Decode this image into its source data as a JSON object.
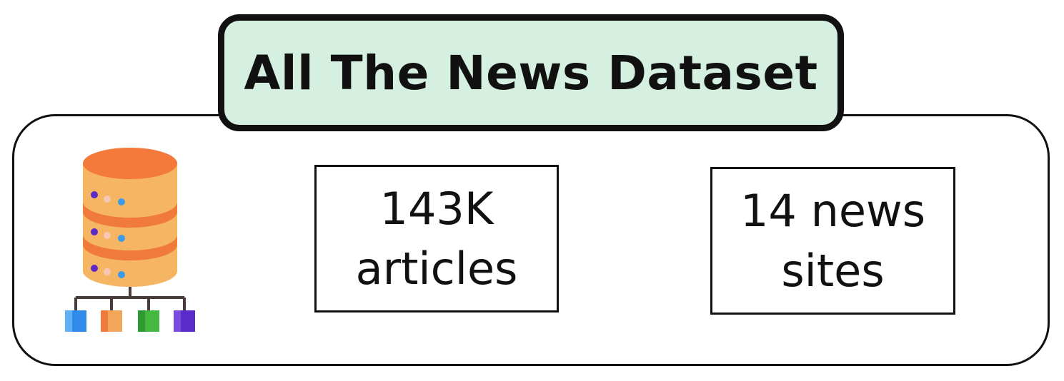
{
  "title": "All The News Dataset",
  "stats": [
    {
      "line1": "143K",
      "line2": "articles"
    },
    {
      "line1": "14 news",
      "line2": "sites"
    }
  ],
  "icons": {
    "database": "database-network-icon"
  },
  "colors": {
    "title_fill": "#d5efe1",
    "border": "#111111",
    "db_top": "#f47a3c",
    "db_body": "#f6b562",
    "db_band": "#ef7a3b",
    "node_blue": "#2f8ae8",
    "node_orange": "#f2a65a",
    "node_green": "#45b842",
    "node_purple": "#5a2bc8"
  }
}
